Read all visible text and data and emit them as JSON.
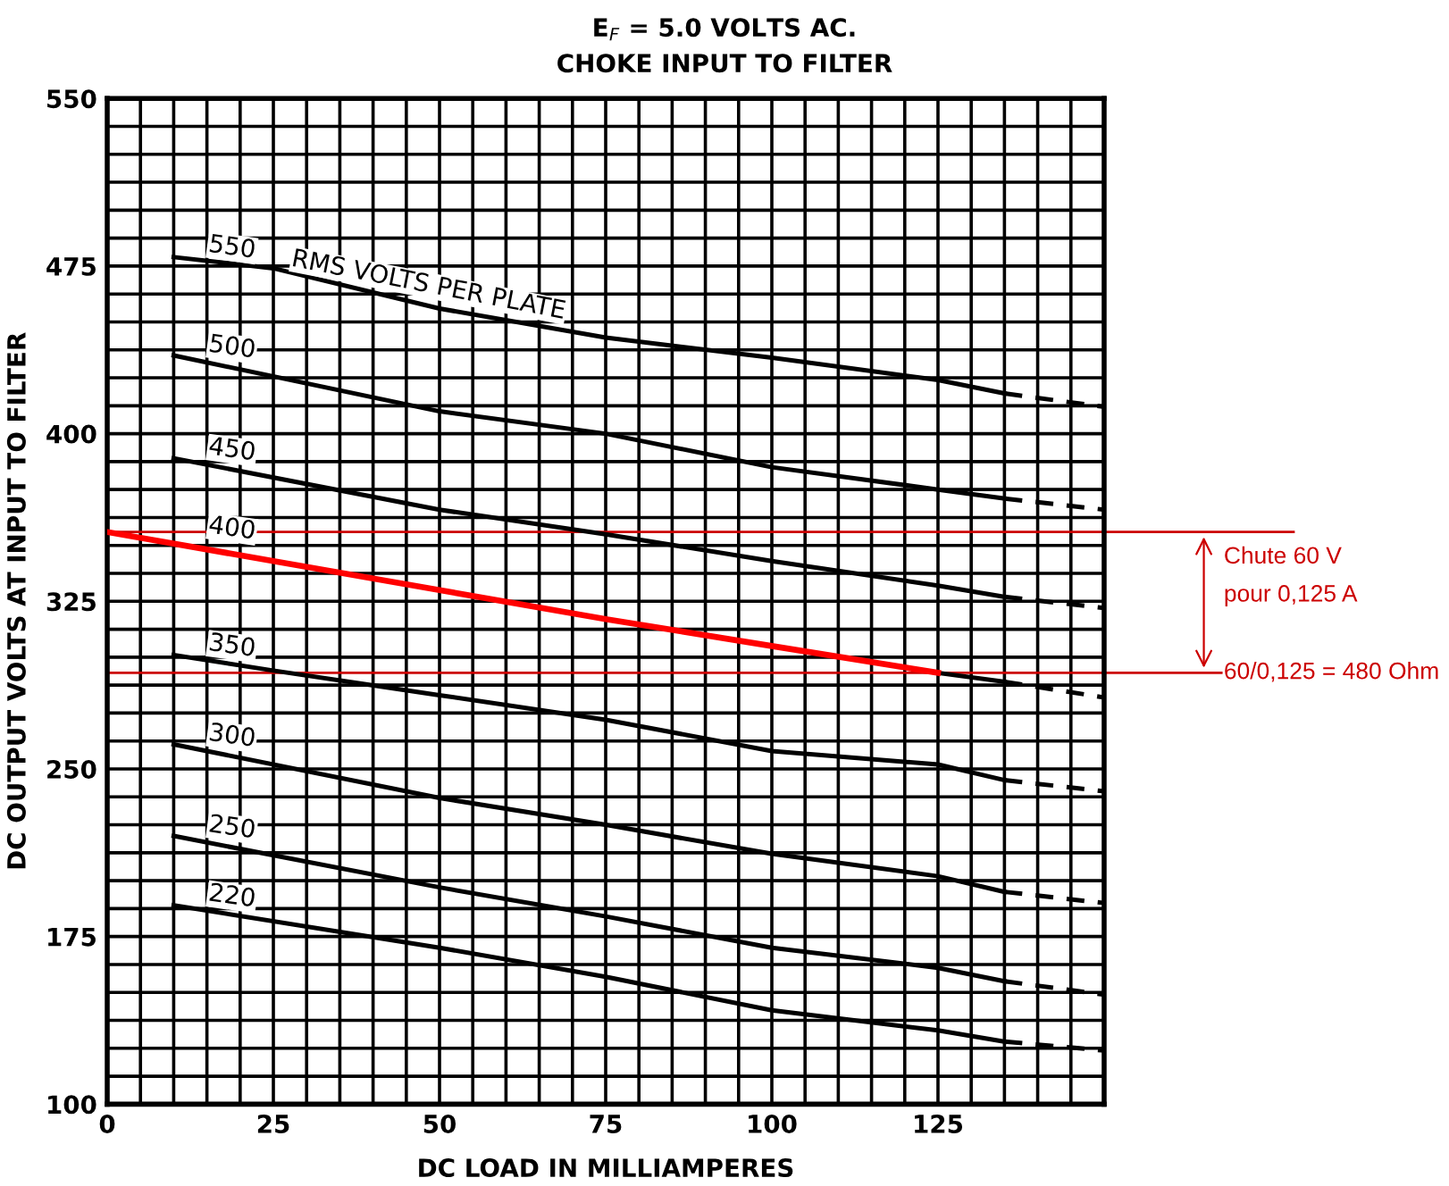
{
  "chart_data": {
    "type": "line",
    "title": "E$_{F}$ = 5.0 VOLTS AC.",
    "subtitle": "CHOKE INPUT TO FILTER",
    "xlabel": "DC LOAD IN MILLIAMPERES",
    "ylabel": "DC OUTPUT VOLTS AT INPUT TO FILTER",
    "xlim": [
      0,
      150
    ],
    "ylim": [
      100,
      550
    ],
    "grid": true,
    "marker": "none",
    "xticks": [
      0,
      {
        "value": 5,
        "label": null
      },
      {
        "value": 10,
        "label": null
      },
      {
        "value": 15,
        "label": null
      },
      {
        "value": 20,
        "label": null
      },
      25,
      {
        "value": 30,
        "label": null
      },
      {
        "value": 35,
        "label": null
      },
      {
        "value": 40,
        "label": null
      },
      {
        "value": 45,
        "label": null
      },
      50,
      {
        "value": 55,
        "label": null
      },
      {
        "value": 60,
        "label": null
      },
      {
        "value": 65,
        "label": null
      },
      {
        "value": 70,
        "label": null
      },
      75,
      {
        "value": 80,
        "label": null
      },
      {
        "value": 85,
        "label": null
      },
      {
        "value": 90,
        "label": null
      },
      {
        "value": 95,
        "label": null
      },
      100,
      {
        "value": 105,
        "label": null
      },
      {
        "value": 110,
        "label": null
      },
      {
        "value": 115,
        "label": null
      },
      {
        "value": 120,
        "label": null
      },
      125,
      {
        "value": 130,
        "label": null
      },
      {
        "value": 135,
        "label": null
      },
      {
        "value": 140,
        "label": null
      },
      {
        "value": 145,
        "label": null
      }
    ],
    "yticks": [
      100,
      {
        "value": 112.5,
        "label": null
      },
      {
        "value": 125,
        "label": null
      },
      {
        "value": 137.5,
        "label": null
      },
      {
        "value": 150,
        "label": null
      },
      {
        "value": 162.5,
        "label": null
      },
      175,
      {
        "value": 187.5,
        "label": null
      },
      {
        "value": 200,
        "label": null
      },
      {
        "value": 212.5,
        "label": null
      },
      {
        "value": 225,
        "label": null
      },
      {
        "value": 237.5,
        "label": null
      },
      250,
      {
        "value": 262.5,
        "label": null
      },
      {
        "value": 275,
        "label": null
      },
      {
        "value": 287.5,
        "label": null
      },
      {
        "value": 300,
        "label": null
      },
      {
        "value": 312.5,
        "label": null
      },
      325,
      {
        "value": 337.5,
        "label": null
      },
      {
        "value": 350,
        "label": null
      },
      {
        "value": 362.5,
        "label": null
      },
      {
        "value": 375,
        "label": null
      },
      {
        "value": 387.5,
        "label": null
      },
      400,
      {
        "value": 412.5,
        "label": null
      },
      {
        "value": 425,
        "label": null
      },
      {
        "value": 437.5,
        "label": null
      },
      {
        "value": 450,
        "label": null
      },
      {
        "value": 462.5,
        "label": null
      },
      475,
      {
        "value": 487.5,
        "label": null
      },
      {
        "value": 500,
        "label": null
      },
      {
        "value": 512.5,
        "label": null
      },
      {
        "value": 525,
        "label": null
      },
      {
        "value": 537.5,
        "label": null
      },
      550
    ],
    "series": [
      {
        "name": "550",
        "color": "#000000",
        "line_style": "solid",
        "x": [
          10,
          25,
          50,
          75,
          100,
          125,
          135
        ],
        "values": [
          479,
          474,
          456,
          443,
          434,
          424,
          418
        ]
      },
      {
        "color": "#000000",
        "line_style": "dashed",
        "x": [
          135,
          150
        ],
        "values": [
          418,
          412
        ]
      },
      {
        "name": "500",
        "color": "#000000",
        "line_style": "solid",
        "x": [
          10,
          50,
          75,
          100,
          125,
          135
        ],
        "values": [
          435,
          410,
          400,
          385,
          375,
          371
        ]
      },
      {
        "color": "#000000",
        "line_style": "dashed",
        "x": [
          135,
          150
        ],
        "values": [
          371,
          366
        ]
      },
      {
        "name": "450",
        "color": "#000000",
        "line_style": "solid",
        "x": [
          10,
          50,
          75,
          100,
          125,
          135
        ],
        "values": [
          389,
          366,
          355,
          343,
          332,
          327
        ]
      },
      {
        "color": "#000000",
        "line_style": "dashed",
        "x": [
          135,
          150
        ],
        "values": [
          327,
          322
        ]
      },
      {
        "color": "#000000",
        "line_style": "solid",
        "x": [
          125,
          135
        ],
        "values": [
          293,
          289
        ]
      },
      {
        "color": "#000000",
        "line_style": "dashed",
        "x": [
          135,
          150
        ],
        "values": [
          289,
          282
        ]
      },
      {
        "name": "350",
        "color": "#000000",
        "line_style": "solid",
        "x": [
          10,
          25,
          50,
          75,
          100,
          125,
          135
        ],
        "values": [
          301,
          294,
          283,
          272,
          258,
          252,
          245
        ]
      },
      {
        "color": "#000000",
        "line_style": "dashed",
        "x": [
          135,
          150
        ],
        "values": [
          245,
          240
        ]
      },
      {
        "name": "300",
        "color": "#000000",
        "line_style": "solid",
        "x": [
          10,
          50,
          75,
          100,
          125,
          135
        ],
        "values": [
          261,
          237,
          225,
          212,
          202,
          195
        ]
      },
      {
        "color": "#000000",
        "line_style": "dashed",
        "x": [
          135,
          150
        ],
        "values": [
          195,
          190
        ]
      },
      {
        "name": "250",
        "color": "#000000",
        "line_style": "solid",
        "x": [
          10,
          50,
          75,
          100,
          125,
          135
        ],
        "values": [
          220,
          197,
          184,
          170,
          161,
          155
        ]
      },
      {
        "color": "#000000",
        "line_style": "dashed",
        "x": [
          135,
          150
        ],
        "values": [
          155,
          149
        ]
      },
      {
        "name": "220",
        "color": "#000000",
        "line_style": "solid",
        "x": [
          10,
          50,
          75,
          100,
          125,
          135
        ],
        "values": [
          189,
          170,
          157,
          142,
          133,
          128
        ]
      },
      {
        "color": "#000000",
        "line_style": "dashed",
        "x": [
          135,
          150
        ],
        "values": [
          128,
          124
        ]
      },
      {
        "name": "400",
        "color": "#ff0000",
        "line_style": "solid",
        "x": [
          0,
          25,
          50,
          75,
          100,
          125
        ],
        "values": [
          356,
          343,
          330,
          317,
          305,
          293
        ]
      }
    ],
    "ref_lines": [
      {
        "axis": "y",
        "value": 356,
        "color": "#cc0000",
        "line_style": "solid"
      },
      {
        "axis": "y",
        "value": 293,
        "color": "#cc0000",
        "line_style": "solid"
      }
    ],
    "annotations": [
      "RMS VOLTS PER PLATE",
      "Chute 60 V",
      "pour 0,125 A",
      "60/0,125 = 480 Ohm"
    ]
  }
}
